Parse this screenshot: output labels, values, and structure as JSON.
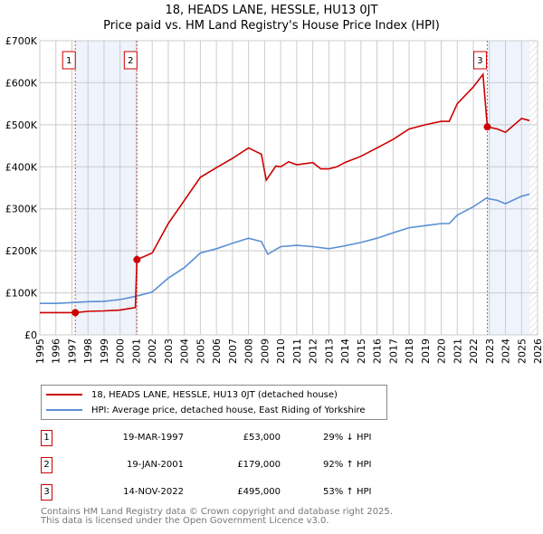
{
  "chart_data": {
    "type": "line",
    "title": "18, HEADS LANE, HESSLE, HU13 0JT",
    "subtitle": "Price paid vs. HM Land Registry's House Price Index (HPI)",
    "xlim": [
      1995,
      2026
    ],
    "ylim": [
      0,
      700000
    ],
    "x_ticks": [
      "1995",
      "1996",
      "1997",
      "1998",
      "1999",
      "2000",
      "2001",
      "2002",
      "2003",
      "2004",
      "2005",
      "2006",
      "2007",
      "2008",
      "2009",
      "2010",
      "2011",
      "2012",
      "2013",
      "2014",
      "2015",
      "2016",
      "2017",
      "2018",
      "2019",
      "2020",
      "2021",
      "2022",
      "2023",
      "2024",
      "2025",
      "2026"
    ],
    "y_ticks": [
      {
        "v": 0,
        "label": "£0"
      },
      {
        "v": 100000,
        "label": "£100K"
      },
      {
        "v": 200000,
        "label": "£200K"
      },
      {
        "v": 300000,
        "label": "£300K"
      },
      {
        "v": 400000,
        "label": "£400K"
      },
      {
        "v": 500000,
        "label": "£500K"
      },
      {
        "v": 600000,
        "label": "£600K"
      },
      {
        "v": 700000,
        "label": "£700K"
      }
    ],
    "grid": true,
    "series": [
      {
        "name": "18, HEADS LANE, HESSLE, HU13 0JT (detached house)",
        "color": "#cc0000",
        "x": [
          1995,
          1997.2,
          1998,
          1999,
          2000,
          2000.95,
          2001.05,
          2002,
          2003,
          2004,
          2005,
          2006,
          2007,
          2008,
          2008.8,
          2009.1,
          2009.7,
          2010,
          2010.5,
          2011,
          2012,
          2012.5,
          2013,
          2013.5,
          2014,
          2015,
          2016,
          2017,
          2018,
          2019,
          2020,
          2020.5,
          2021,
          2022,
          2022.6,
          2022.87,
          2023.5,
          2024,
          2025,
          2025.5
        ],
        "y": [
          53000,
          53000,
          56000,
          57000,
          59000,
          65000,
          179000,
          195000,
          265000,
          320000,
          375000,
          398000,
          420000,
          445000,
          430000,
          368000,
          402000,
          400000,
          412000,
          405000,
          410000,
          395000,
          395000,
          400000,
          410000,
          425000,
          445000,
          465000,
          490000,
          500000,
          508000,
          508000,
          550000,
          590000,
          620000,
          495000,
          490000,
          482000,
          515000,
          510000
        ]
      },
      {
        "name": "HPI: Average price, detached house, East Riding of Yorkshire",
        "color": "#5b8fd4",
        "x": [
          1995,
          1996,
          1997,
          1998,
          1999,
          2000,
          2001,
          2002,
          2003,
          2004,
          2005,
          2006,
          2007,
          2008,
          2008.8,
          2009.2,
          2010,
          2011,
          2012,
          2013,
          2014,
          2015,
          2016,
          2017,
          2018,
          2019,
          2020,
          2020.5,
          2021,
          2022,
          2022.8,
          2023.5,
          2024,
          2025,
          2025.5
        ],
        "y": [
          75000,
          75000,
          77000,
          79000,
          80000,
          84000,
          92000,
          102000,
          135000,
          160000,
          195000,
          205000,
          218000,
          230000,
          222000,
          192000,
          210000,
          213000,
          210000,
          205000,
          212000,
          220000,
          230000,
          243000,
          255000,
          260000,
          265000,
          265000,
          285000,
          305000,
          325000,
          320000,
          312000,
          330000,
          335000
        ]
      }
    ],
    "sales": [
      {
        "n": "1",
        "x": 1997.21,
        "price": 53000,
        "date": "19-MAR-1997",
        "price_label": "£53,000",
        "hpi": "29% ↓ HPI"
      },
      {
        "n": "2",
        "x": 2001.05,
        "price": 179000,
        "date": "19-JAN-2001",
        "price_label": "£179,000",
        "hpi": "92% ↑ HPI"
      },
      {
        "n": "3",
        "x": 2022.87,
        "price": 495000,
        "date": "14-NOV-2022",
        "price_label": "£495,000",
        "hpi": "53% ↑ HPI"
      }
    ],
    "shaded": [
      [
        1997.21,
        2001.05
      ],
      [
        2022.87,
        2025.5
      ]
    ],
    "hatched_from": 2025.5,
    "legend_position": "below"
  },
  "footer": {
    "line1": "Contains HM Land Registry data © Crown copyright and database right 2025.",
    "line2": "This data is licensed under the Open Government Licence v3.0."
  }
}
